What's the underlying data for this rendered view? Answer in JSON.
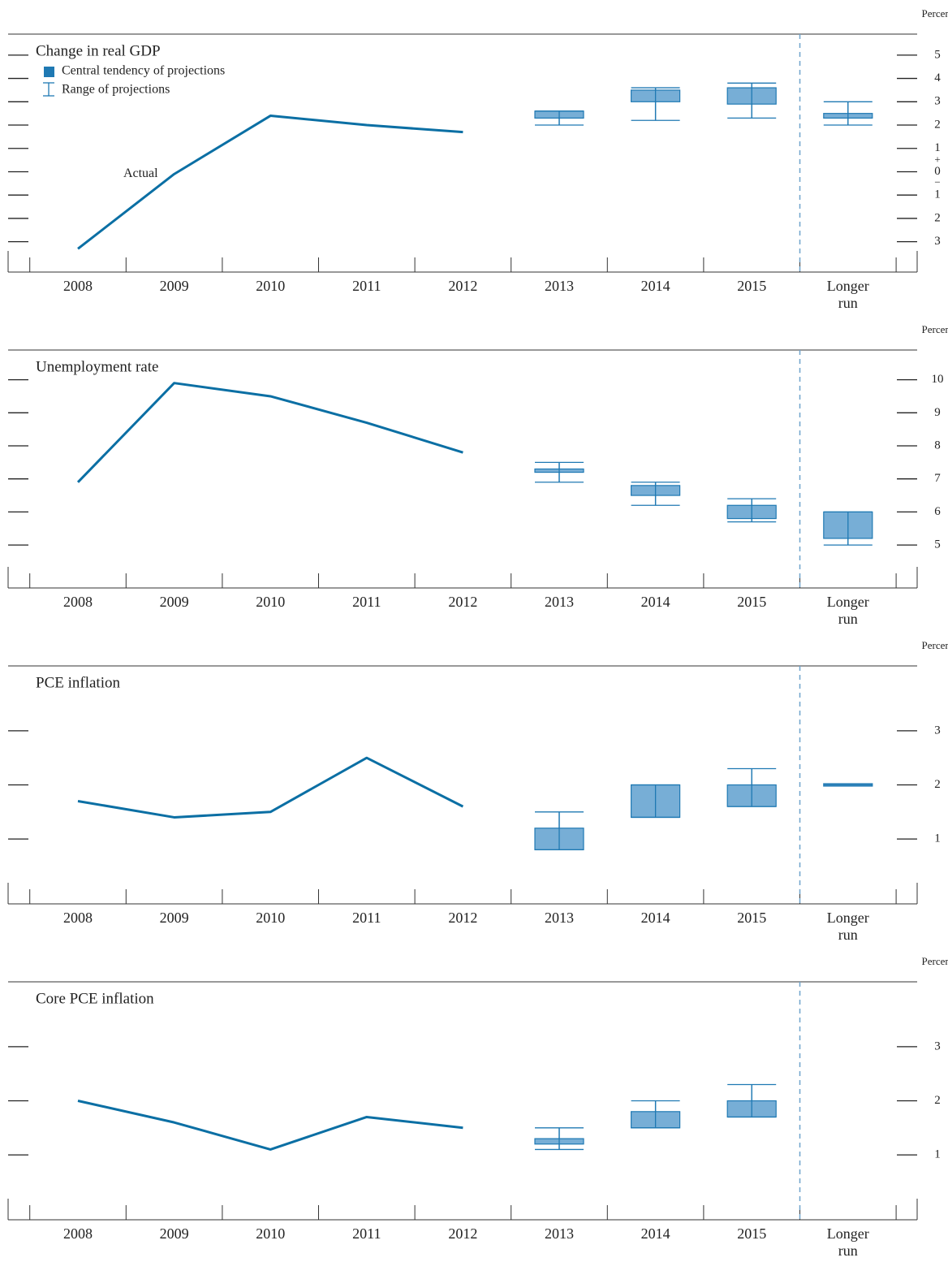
{
  "chart_data": [
    {
      "type": "projection",
      "title": "Change in real GDP",
      "unit": "Percent",
      "legend": {
        "central_tendency": "Central tendency of projections",
        "range": "Range of projections"
      },
      "annotation": "Actual",
      "categories": [
        "2008",
        "2009",
        "2010",
        "2011",
        "2012",
        "2013",
        "2014",
        "2015",
        "Longer run"
      ],
      "series": [
        {
          "name": "Actual",
          "color": "#0b6fa4",
          "values": [
            -3.3,
            -0.1,
            2.4,
            2.0,
            1.7,
            null,
            null,
            null,
            null
          ]
        }
      ],
      "projections": {
        "color": "#77aed6",
        "stroke": "#1f79b3",
        "central_tendency": [
          null,
          null,
          null,
          null,
          null,
          [
            2.3,
            2.6
          ],
          [
            3.0,
            3.5
          ],
          [
            2.9,
            3.6
          ],
          [
            2.3,
            2.5
          ]
        ],
        "range": [
          null,
          null,
          null,
          null,
          null,
          [
            2.0,
            2.6
          ],
          [
            2.2,
            3.6
          ],
          [
            2.3,
            3.8
          ],
          [
            2.0,
            3.0
          ]
        ]
      },
      "ylim": [
        -4.3,
        5.9
      ],
      "yticks": [
        5,
        4,
        3,
        2,
        1,
        0,
        {
          "value": -1,
          "label": "1"
        },
        {
          "value": -2,
          "label": "2"
        },
        {
          "value": -3,
          "label": "3"
        }
      ],
      "zero_signs": {
        "plus": "+",
        "minus": "−"
      }
    },
    {
      "type": "projection",
      "title": "Unemployment rate",
      "unit": "Percent",
      "categories": [
        "2008",
        "2009",
        "2010",
        "2011",
        "2012",
        "2013",
        "2014",
        "2015",
        "Longer run"
      ],
      "series": [
        {
          "color": "#0b6fa4",
          "values": [
            6.9,
            9.9,
            9.5,
            8.7,
            7.8,
            null,
            null,
            null,
            null
          ]
        }
      ],
      "projections": {
        "color": "#77aed6",
        "stroke": "#1f79b3",
        "central_tendency": [
          null,
          null,
          null,
          null,
          null,
          [
            7.2,
            7.3
          ],
          [
            6.5,
            6.8
          ],
          [
            5.8,
            6.2
          ],
          [
            5.2,
            6.0
          ]
        ],
        "range": [
          null,
          null,
          null,
          null,
          null,
          [
            6.9,
            7.5
          ],
          [
            6.2,
            6.9
          ],
          [
            5.7,
            6.4
          ],
          [
            5.0,
            6.0
          ]
        ]
      },
      "ylim": [
        3.7,
        10.9
      ],
      "yticks": [
        10,
        9,
        8,
        7,
        6,
        5
      ]
    },
    {
      "type": "projection",
      "title": "PCE inflation",
      "unit": "Percent",
      "categories": [
        "2008",
        "2009",
        "2010",
        "2011",
        "2012",
        "2013",
        "2014",
        "2015",
        "Longer run"
      ],
      "series": [
        {
          "color": "#0b6fa4",
          "values": [
            1.7,
            1.4,
            1.5,
            2.5,
            1.6,
            null,
            null,
            null,
            null
          ]
        }
      ],
      "projections": {
        "color": "#77aed6",
        "stroke": "#1f79b3",
        "central_tendency": [
          null,
          null,
          null,
          null,
          null,
          [
            0.8,
            1.2
          ],
          [
            1.4,
            2.0
          ],
          [
            1.6,
            2.0
          ],
          [
            2.0,
            2.0
          ]
        ],
        "range": [
          null,
          null,
          null,
          null,
          null,
          [
            0.8,
            1.5
          ],
          [
            1.4,
            2.0
          ],
          [
            1.6,
            2.3
          ],
          [
            2.0,
            2.0
          ]
        ]
      },
      "ylim": [
        -0.2,
        4.2
      ],
      "yticks": [
        3,
        2,
        1
      ]
    },
    {
      "type": "projection",
      "title": "Core PCE inflation",
      "unit": "Percent",
      "categories": [
        "2008",
        "2009",
        "2010",
        "2011",
        "2012",
        "2013",
        "2014",
        "2015",
        "Longer run"
      ],
      "series": [
        {
          "color": "#0b6fa4",
          "values": [
            2.0,
            1.6,
            1.1,
            1.7,
            1.5,
            null,
            null,
            null,
            null
          ]
        }
      ],
      "projections": {
        "color": "#77aed6",
        "stroke": "#1f79b3",
        "central_tendency": [
          null,
          null,
          null,
          null,
          null,
          [
            1.2,
            1.3
          ],
          [
            1.5,
            1.8
          ],
          [
            1.7,
            2.0
          ],
          null
        ],
        "range": [
          null,
          null,
          null,
          null,
          null,
          [
            1.1,
            1.5
          ],
          [
            1.5,
            2.0
          ],
          [
            1.7,
            2.3
          ],
          null
        ]
      },
      "ylim": [
        -0.2,
        4.2
      ],
      "yticks": [
        3,
        2,
        1
      ]
    }
  ]
}
